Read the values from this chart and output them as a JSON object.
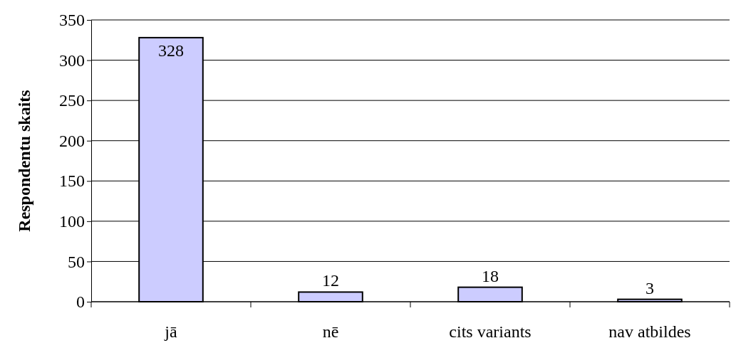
{
  "chart_data": {
    "type": "bar",
    "ylabel": "Respondentu skaits",
    "categories": [
      "jā",
      "nē",
      "cits variants",
      "nav atbildes"
    ],
    "values": [
      328,
      12,
      18,
      3
    ],
    "color": "#ccccff",
    "ylim": [
      0,
      350
    ],
    "yticks": [
      0,
      50,
      100,
      150,
      200,
      250,
      300,
      350
    ],
    "grid": "y",
    "data_labels": true
  }
}
